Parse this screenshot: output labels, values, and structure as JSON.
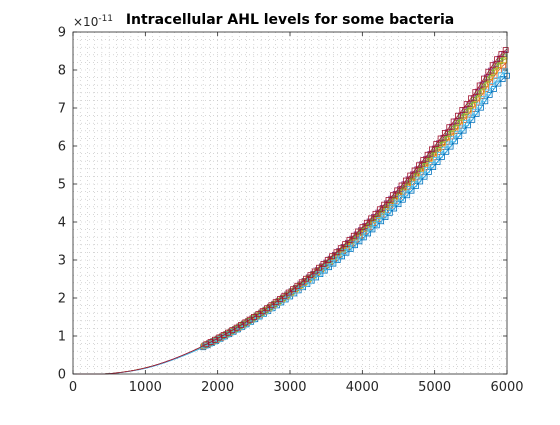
{
  "chart_data": {
    "type": "line",
    "title": "Intracellular AHL levels for some bacteria",
    "xlabel": "",
    "ylabel": "",
    "xlim": [
      0,
      6000
    ],
    "ylim": [
      0,
      9
    ],
    "y_exponent_label": "×10",
    "y_exponent_power": "-11",
    "x_ticks": [
      "0",
      "1000",
      "2000",
      "3000",
      "4000",
      "5000",
      "6000"
    ],
    "y_ticks": [
      "0",
      "1",
      "2",
      "3",
      "4",
      "5",
      "6",
      "7",
      "8",
      "9"
    ],
    "grid": "minor dotted",
    "legend": "none",
    "colors": [
      "#0072BD",
      "#D95319",
      "#EDB120",
      "#7E2F8E",
      "#77AC30",
      "#4DBEEE",
      "#A2142F"
    ],
    "series": [
      {
        "color": "#0072BD",
        "x": [
          0,
          500,
          1000,
          1500,
          2000,
          2500,
          3000,
          3500,
          4000,
          4500,
          5000,
          5500,
          6000
        ],
        "values": [
          0,
          0.01,
          0.15,
          0.46,
          0.89,
          1.42,
          2.04,
          2.75,
          3.56,
          4.47,
          5.49,
          6.64,
          7.85
        ]
      },
      {
        "color": "#D95319",
        "x": [
          0,
          500,
          1000,
          1500,
          2000,
          2500,
          3000,
          3500,
          4000,
          4500,
          5000,
          5500,
          6000
        ],
        "values": [
          0,
          0.01,
          0.16,
          0.47,
          0.91,
          1.46,
          2.1,
          2.85,
          3.7,
          4.66,
          5.73,
          6.91,
          8.2
        ]
      },
      {
        "color": "#EDB120",
        "x": [
          0,
          500,
          1000,
          1500,
          2000,
          2500,
          3000,
          3500,
          4000,
          4500,
          5000,
          5500,
          6000
        ],
        "values": [
          0,
          0.01,
          0.16,
          0.47,
          0.92,
          1.47,
          2.12,
          2.88,
          3.75,
          4.73,
          5.82,
          7.02,
          8.33
        ]
      },
      {
        "color": "#7E2F8E",
        "x": [
          0,
          500,
          1000,
          1500,
          2000,
          2500,
          3000,
          3500,
          4000,
          4500,
          5000,
          5500,
          6000
        ],
        "values": [
          0,
          0.01,
          0.16,
          0.48,
          0.93,
          1.49,
          2.15,
          2.93,
          3.82,
          4.82,
          5.93,
          7.15,
          8.48
        ]
      },
      {
        "color": "#77AC30",
        "x": [
          0,
          500,
          1000,
          1500,
          2000,
          2500,
          3000,
          3500,
          4000,
          4500,
          5000,
          5500,
          6000
        ],
        "values": [
          0,
          0.01,
          0.16,
          0.47,
          0.92,
          1.48,
          2.13,
          2.9,
          3.78,
          4.77,
          5.87,
          7.08,
          8.4
        ]
      },
      {
        "color": "#4DBEEE",
        "x": [
          0,
          500,
          1000,
          1500,
          2000,
          2500,
          3000,
          3500,
          4000,
          4500,
          5000,
          5500,
          6000
        ],
        "values": [
          0,
          0.01,
          0.15,
          0.46,
          0.9,
          1.44,
          2.07,
          2.8,
          3.63,
          4.56,
          5.6,
          6.76,
          8.0
        ]
      },
      {
        "color": "#A2142F",
        "x": [
          0,
          500,
          1000,
          1500,
          2000,
          2500,
          3000,
          3500,
          4000,
          4500,
          5000,
          5500,
          6000
        ],
        "values": [
          0,
          0.01,
          0.16,
          0.48,
          0.94,
          1.5,
          2.17,
          2.96,
          3.86,
          4.87,
          6.0,
          7.25,
          8.55
        ]
      }
    ]
  }
}
